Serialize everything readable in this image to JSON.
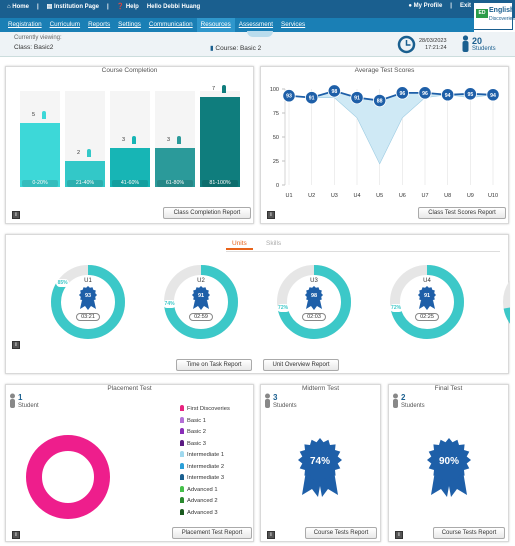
{
  "header": {
    "home": "Home",
    "institution_page": "Institution Page",
    "help": "Help",
    "greeting": "Hello Debbi Huang",
    "my_profile": "My Profile",
    "exit": "Exit",
    "logo_line1": "English",
    "logo_line2": "Discoveries",
    "logo_badge": "ED"
  },
  "nav": {
    "items": [
      "Registration",
      "Curriculum",
      "Reports",
      "Settings",
      "Communication",
      "Resources",
      "Assessment",
      "Services"
    ],
    "active": "Resources"
  },
  "context": {
    "currently_viewing": "Currently viewing:",
    "class_label": "Class: Basic2",
    "course_label": "Course: Basic 2",
    "date": "28/03/2023",
    "time": "17:21:24",
    "student_count": "20",
    "students_label": "Students"
  },
  "course_completion": {
    "title": "Course Completion",
    "button": "Class Completion Report",
    "chart_data": {
      "type": "bar",
      "categories": [
        "0-20%",
        "21-40%",
        "41-60%",
        "61-80%",
        "81-100%"
      ],
      "values": [
        5,
        2,
        3,
        3,
        7
      ],
      "colors": [
        "#3dd8d8",
        "#33c8c8",
        "#17b5b5",
        "#2b9a9a",
        "#0f7d7d"
      ]
    }
  },
  "average_test_scores": {
    "title": "Average Test Scores",
    "button": "Class Test Scores Report",
    "chart_data": {
      "type": "line",
      "x": [
        "U1",
        "U2",
        "U3",
        "U4",
        "U5",
        "U6",
        "U7",
        "U8",
        "U9",
        "U10"
      ],
      "values": [
        93,
        91,
        98,
        91,
        88,
        96,
        96,
        94,
        95,
        94
      ],
      "lower": [
        93,
        91,
        91,
        70,
        22,
        70,
        91,
        94,
        91,
        94
      ],
      "yticks": [
        100,
        75,
        50,
        25,
        0
      ],
      "ylim": [
        0,
        100
      ]
    }
  },
  "units_panel": {
    "tabs": [
      "Units",
      "Skills"
    ],
    "active_tab": "Units",
    "units": [
      {
        "name": "U1",
        "percent": 85,
        "percent_label": "85%",
        "score": "93",
        "time": "03:21"
      },
      {
        "name": "U2",
        "percent": 74,
        "percent_label": "74%",
        "score": "91",
        "time": "02:59"
      },
      {
        "name": "U3",
        "percent": 72,
        "percent_label": "72%",
        "score": "98",
        "time": "02:03"
      },
      {
        "name": "U4",
        "percent": 72,
        "percent_label": "72%",
        "score": "91",
        "time": "02:25"
      }
    ],
    "button_time": "Time on Task Report",
    "button_overview": "Unit Overview Report"
  },
  "placement": {
    "title": "Placement Test",
    "count": "1",
    "student_label": "Student",
    "button": "Placement Test Report",
    "legend": [
      {
        "label": "First Discoveries",
        "color": "#e8237f"
      },
      {
        "label": "Basic 1",
        "color": "#b46fd6"
      },
      {
        "label": "Basic 2",
        "color": "#8a2db8"
      },
      {
        "label": "Basic 3",
        "color": "#5a1a82"
      },
      {
        "label": "Intermediate 1",
        "color": "#9fd9ef"
      },
      {
        "label": "Intermediate 2",
        "color": "#2a9fd8"
      },
      {
        "label": "Intermediate 3",
        "color": "#1a5f8f"
      },
      {
        "label": "Advanced 1",
        "color": "#45c04a"
      },
      {
        "label": "Advanced 2",
        "color": "#2a8a2e"
      },
      {
        "label": "Advanced 3",
        "color": "#1a5a1e"
      }
    ]
  },
  "midterm": {
    "title": "Midterm Test",
    "count": "3",
    "students_label": "Students",
    "score": "74%",
    "button": "Course Tests Report"
  },
  "final": {
    "title": "Final Test",
    "count": "2",
    "students_label": "Students",
    "score": "90%",
    "button": "Course Tests Report"
  },
  "colors": {
    "brand": "#1a5f8f",
    "nav": "#1a7fb5",
    "teal": "#3cc8c8",
    "badge": "#1e5fa8",
    "pink": "#ee1e8c",
    "active_tab": "#e8631a"
  }
}
